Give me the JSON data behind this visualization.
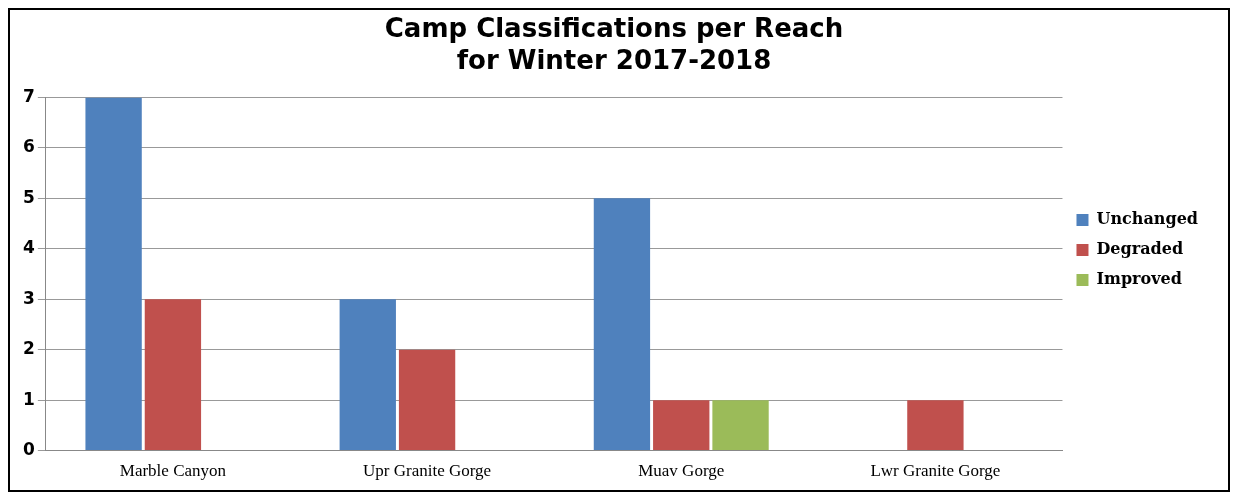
{
  "chart_data": {
    "type": "bar",
    "title": "Camp Classifications per Reach\nfor Winter 2017-2018",
    "categories": [
      "Marble Canyon",
      "Upr Granite Gorge",
      "Muav Gorge",
      "Lwr Granite Gorge"
    ],
    "series": [
      {
        "name": "Unchanged",
        "color": "#4f81bd",
        "values": [
          7,
          3,
          5,
          0
        ]
      },
      {
        "name": "Degraded",
        "color": "#c0504d",
        "values": [
          3,
          2,
          1,
          1
        ]
      },
      {
        "name": "Improved",
        "color": "#9bbb59",
        "values": [
          0,
          0,
          1,
          0
        ]
      }
    ],
    "ylim": [
      0,
      7
    ],
    "yticks": [
      0,
      1,
      2,
      3,
      4,
      5,
      6,
      7
    ],
    "grid": "y",
    "legend": "right"
  }
}
